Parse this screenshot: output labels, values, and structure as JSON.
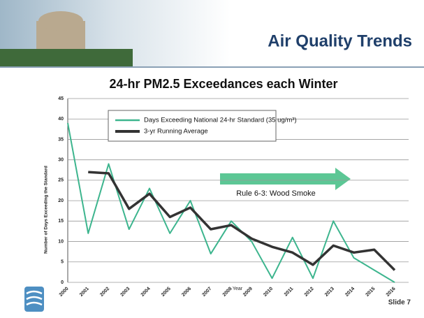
{
  "slide_title": "Air Quality Trends",
  "slide_number": "Slide 7",
  "chart_data": {
    "type": "line",
    "title": "24-hr PM2.5 Exceedances each Winter",
    "xlabel": "Year",
    "ylabel": "Number of Days Exceeding the Standard",
    "annotation": "Rule 6-3: Wood Smoke",
    "categories": [
      "2000",
      "2001",
      "2002",
      "2003",
      "2004",
      "2005",
      "2006",
      "2007",
      "2008",
      "2009",
      "2010",
      "2011",
      "2012",
      "2013",
      "2014",
      "2015",
      "2016"
    ],
    "series": [
      {
        "name": "Days Exceeding National 24-hr Standard (35 ug/m³)",
        "color": "#3db58e",
        "values": [
          39,
          12,
          29,
          13,
          23,
          12,
          20,
          7,
          15,
          10,
          1,
          11,
          1,
          15,
          6,
          3,
          0
        ]
      },
      {
        "name": "3-yr Running Average",
        "color": "#333333",
        "values": [
          null,
          27,
          26.7,
          18,
          21.7,
          16,
          18.3,
          13,
          14,
          10.7,
          8.7,
          7.3,
          4.3,
          9,
          7.3,
          8,
          3
        ]
      }
    ],
    "ylim": [
      0,
      45
    ],
    "yticks": [
      0,
      5,
      10,
      15,
      20,
      25,
      30,
      35,
      40,
      45
    ],
    "grid": true
  }
}
